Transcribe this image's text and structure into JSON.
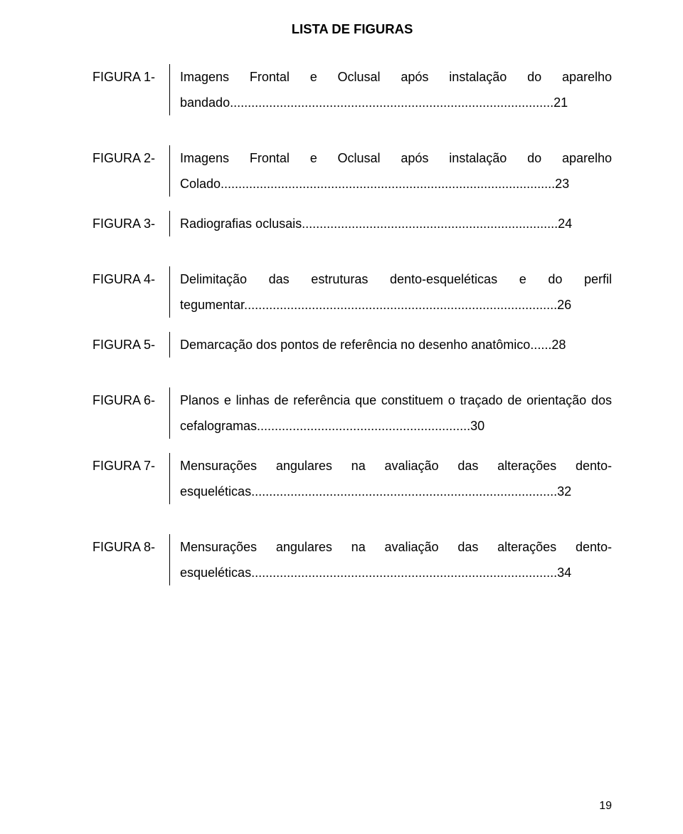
{
  "title": "LISTA DE FIGURAS",
  "blocks": [
    {
      "entries": [
        {
          "label": "FIGURA 1-",
          "text": "Imagens Frontal e Oclusal após instalação do aparelho bandado...........................................................................................21"
        }
      ]
    },
    {
      "entries": [
        {
          "label": "FIGURA 2-",
          "text": "Imagens Frontal e Oclusal após instalação do aparelho Colado..............................................................................................23"
        },
        {
          "label": "FIGURA 3-",
          "text": "Radiografias oclusais........................................................................24"
        }
      ]
    },
    {
      "entries": [
        {
          "label": "FIGURA 4-",
          "text": "Delimitação das estruturas dento-esqueléticas e do perfil tegumentar........................................................................................26"
        },
        {
          "label": "FIGURA 5-",
          "text": "Demarcação dos pontos de referência no desenho anatômico......28"
        }
      ]
    },
    {
      "entries": [
        {
          "label": "FIGURA 6-",
          "text": "Planos e linhas de referência que constituem o traçado de orientação dos cefalogramas............................................................30"
        },
        {
          "label": "FIGURA 7-",
          "text": "Mensurações angulares na avaliação das alterações dento-esqueléticas......................................................................................32"
        }
      ]
    },
    {
      "entries": [
        {
          "label": "FIGURA 8-",
          "text": "Mensurações angulares na avaliação das alterações dento-esqueléticas......................................................................................34"
        }
      ]
    }
  ],
  "pageNumber": "19",
  "style": {
    "background": "#ffffff",
    "textColor": "#000000",
    "fontFamily": "Arial",
    "titleFontSize": 18.5,
    "bodyFontSize": 18,
    "lineHeight": 2.0,
    "pageWidth": 960,
    "pageHeight": 1171
  }
}
